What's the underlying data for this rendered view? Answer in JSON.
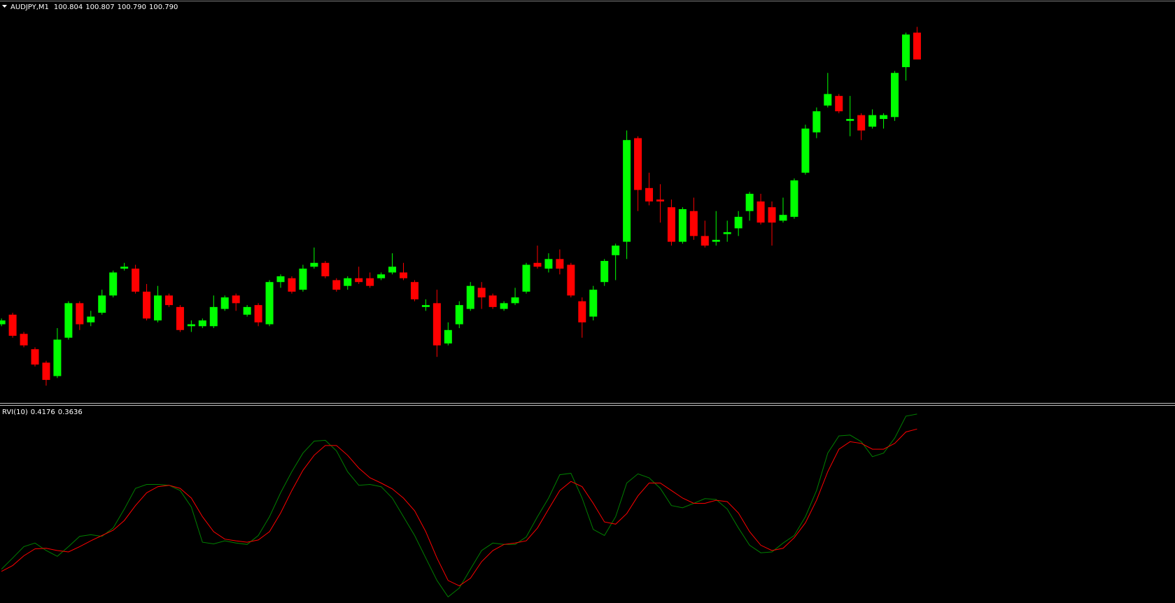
{
  "chart_data": [
    {
      "type": "candlestick",
      "title": "AUDJPY,M1",
      "header_values": [
        "100.804",
        "100.807",
        "100.790",
        "100.790"
      ],
      "up_color": "#00ff00",
      "down_color": "#ff0000",
      "ylim": [
        100.611,
        100.821
      ],
      "open": [
        100.652,
        100.657,
        100.647,
        100.639,
        100.632,
        100.625,
        100.645,
        100.663,
        100.653,
        100.658,
        100.667,
        100.681,
        100.681,
        100.669,
        100.654,
        100.667,
        100.661,
        100.651,
        100.651,
        100.651,
        100.66,
        100.667,
        100.657,
        100.662,
        100.652,
        100.674,
        100.676,
        100.67,
        100.682,
        100.684,
        100.675,
        100.672,
        100.676,
        100.676,
        100.676,
        100.679,
        100.679,
        100.674,
        100.661,
        100.663,
        100.642,
        100.652,
        100.66,
        100.671,
        100.667,
        100.66,
        100.663,
        100.669,
        100.684,
        100.681,
        100.686,
        100.683,
        100.664,
        100.656,
        100.674,
        100.688,
        100.695,
        100.749,
        100.723,
        100.717,
        100.713,
        100.695,
        100.711,
        100.698,
        100.695,
        100.699,
        100.702,
        100.711,
        100.716,
        100.713,
        100.706,
        100.708,
        100.731,
        100.752,
        100.766,
        100.771,
        100.758,
        100.761,
        100.755,
        100.759,
        100.76,
        100.786,
        100.804
      ],
      "high": [
        100.655,
        100.658,
        100.648,
        100.64,
        100.633,
        100.65,
        100.664,
        100.664,
        100.659,
        100.67,
        100.68,
        100.684,
        100.683,
        100.673,
        100.672,
        100.668,
        100.662,
        100.654,
        100.655,
        100.667,
        100.667,
        100.668,
        100.662,
        100.663,
        100.675,
        100.678,
        100.677,
        100.683,
        100.692,
        100.685,
        100.676,
        100.677,
        100.682,
        100.679,
        100.679,
        100.689,
        100.684,
        100.675,
        100.665,
        100.67,
        100.653,
        100.664,
        100.674,
        100.674,
        100.668,
        100.664,
        100.671,
        100.684,
        100.693,
        100.689,
        100.691,
        100.684,
        100.666,
        100.672,
        100.686,
        100.694,
        100.753,
        100.75,
        100.731,
        100.725,
        100.717,
        100.713,
        100.718,
        100.706,
        100.711,
        100.706,
        100.711,
        100.721,
        100.72,
        100.716,
        100.718,
        100.728,
        100.756,
        100.765,
        100.783,
        100.772,
        100.771,
        100.762,
        100.764,
        100.762,
        100.784,
        100.804,
        100.807
      ],
      "low": [
        100.651,
        100.645,
        100.64,
        100.63,
        100.62,
        100.624,
        100.644,
        100.649,
        100.651,
        100.657,
        100.666,
        100.68,
        100.668,
        100.654,
        100.653,
        100.661,
        100.648,
        100.648,
        100.65,
        100.65,
        100.659,
        100.659,
        100.656,
        100.651,
        100.651,
        100.671,
        100.668,
        100.669,
        100.681,
        100.676,
        100.669,
        100.67,
        100.673,
        100.671,
        100.675,
        100.678,
        100.675,
        100.664,
        100.659,
        100.635,
        100.641,
        100.65,
        100.659,
        100.66,
        100.66,
        100.659,
        100.662,
        100.668,
        100.681,
        100.679,
        100.678,
        100.666,
        100.645,
        100.654,
        100.672,
        100.675,
        100.686,
        100.711,
        100.714,
        100.705,
        100.693,
        100.694,
        100.696,
        100.692,
        100.693,
        100.695,
        100.698,
        100.706,
        100.704,
        100.693,
        100.705,
        100.707,
        100.73,
        100.749,
        100.765,
        100.762,
        100.75,
        100.748,
        100.754,
        100.754,
        100.758,
        100.779,
        100.79
      ],
      "close": [
        100.654,
        100.646,
        100.641,
        100.631,
        100.623,
        100.644,
        100.663,
        100.652,
        100.656,
        100.667,
        100.679,
        100.682,
        100.669,
        100.655,
        100.667,
        100.662,
        100.649,
        100.652,
        100.654,
        100.661,
        100.666,
        100.663,
        100.661,
        100.653,
        100.674,
        100.677,
        100.669,
        100.681,
        100.684,
        100.677,
        100.67,
        100.676,
        100.674,
        100.672,
        100.678,
        100.682,
        100.676,
        100.665,
        100.662,
        100.641,
        100.649,
        100.662,
        100.672,
        100.666,
        100.661,
        100.663,
        100.666,
        100.683,
        100.682,
        100.686,
        100.681,
        100.667,
        100.653,
        100.67,
        100.685,
        100.693,
        100.748,
        100.722,
        100.716,
        100.716,
        100.695,
        100.712,
        100.698,
        100.693,
        100.696,
        100.7,
        100.708,
        100.72,
        100.705,
        100.705,
        100.709,
        100.727,
        100.754,
        100.763,
        100.772,
        100.763,
        100.759,
        100.753,
        100.761,
        100.761,
        100.783,
        100.803,
        100.79
      ]
    },
    {
      "type": "line",
      "title": "RVI(10)",
      "header_values": [
        "0.4176",
        "0.3636"
      ],
      "ylim": [
        -0.263,
        0.45
      ],
      "series": [
        {
          "color": "#008000",
          "values": [
            -0.141,
            -0.101,
            -0.06,
            -0.047,
            -0.074,
            -0.095,
            -0.06,
            -0.023,
            -0.017,
            -0.023,
            0.007,
            0.075,
            0.15,
            0.164,
            0.164,
            0.161,
            0.142,
            0.083,
            -0.044,
            -0.05,
            -0.039,
            -0.047,
            -0.052,
            -0.02,
            0.048,
            0.134,
            0.21,
            0.277,
            0.32,
            0.323,
            0.285,
            0.21,
            0.161,
            0.164,
            0.156,
            0.115,
            0.048,
            -0.02,
            -0.101,
            -0.182,
            -0.241,
            -0.209,
            -0.141,
            -0.074,
            -0.047,
            -0.052,
            -0.052,
            -0.025,
            0.048,
            0.115,
            0.199,
            0.204,
            0.115,
            0.002,
            -0.02,
            0.048,
            0.169,
            0.202,
            0.188,
            0.15,
            0.088,
            0.08,
            0.096,
            0.113,
            0.11,
            0.075,
            0.007,
            -0.055,
            -0.082,
            -0.079,
            -0.047,
            -0.02,
            0.048,
            0.142,
            0.277,
            0.339,
            0.342,
            0.318,
            0.264,
            0.277,
            0.331,
            0.41,
            0.4176
          ]
        },
        {
          "color": "#ff0000",
          "values": [
            -0.149,
            -0.128,
            -0.093,
            -0.068,
            -0.066,
            -0.074,
            -0.079,
            -0.06,
            -0.039,
            -0.02,
            -0.001,
            0.034,
            0.088,
            0.134,
            0.156,
            0.161,
            0.15,
            0.115,
            0.048,
            -0.006,
            -0.033,
            -0.039,
            -0.044,
            -0.036,
            -0.006,
            0.061,
            0.142,
            0.215,
            0.269,
            0.304,
            0.304,
            0.269,
            0.223,
            0.188,
            0.169,
            0.148,
            0.115,
            0.069,
            -0.006,
            -0.101,
            -0.182,
            -0.201,
            -0.174,
            -0.114,
            -0.074,
            -0.052,
            -0.047,
            -0.039,
            0.007,
            0.075,
            0.142,
            0.175,
            0.156,
            0.096,
            0.029,
            0.021,
            0.059,
            0.123,
            0.169,
            0.169,
            0.142,
            0.115,
            0.096,
            0.096,
            0.107,
            0.102,
            0.061,
            -0.006,
            -0.055,
            -0.074,
            -0.066,
            -0.028,
            0.026,
            0.107,
            0.21,
            0.291,
            0.318,
            0.312,
            0.291,
            0.291,
            0.312,
            0.353,
            0.3636
          ]
        }
      ]
    }
  ]
}
